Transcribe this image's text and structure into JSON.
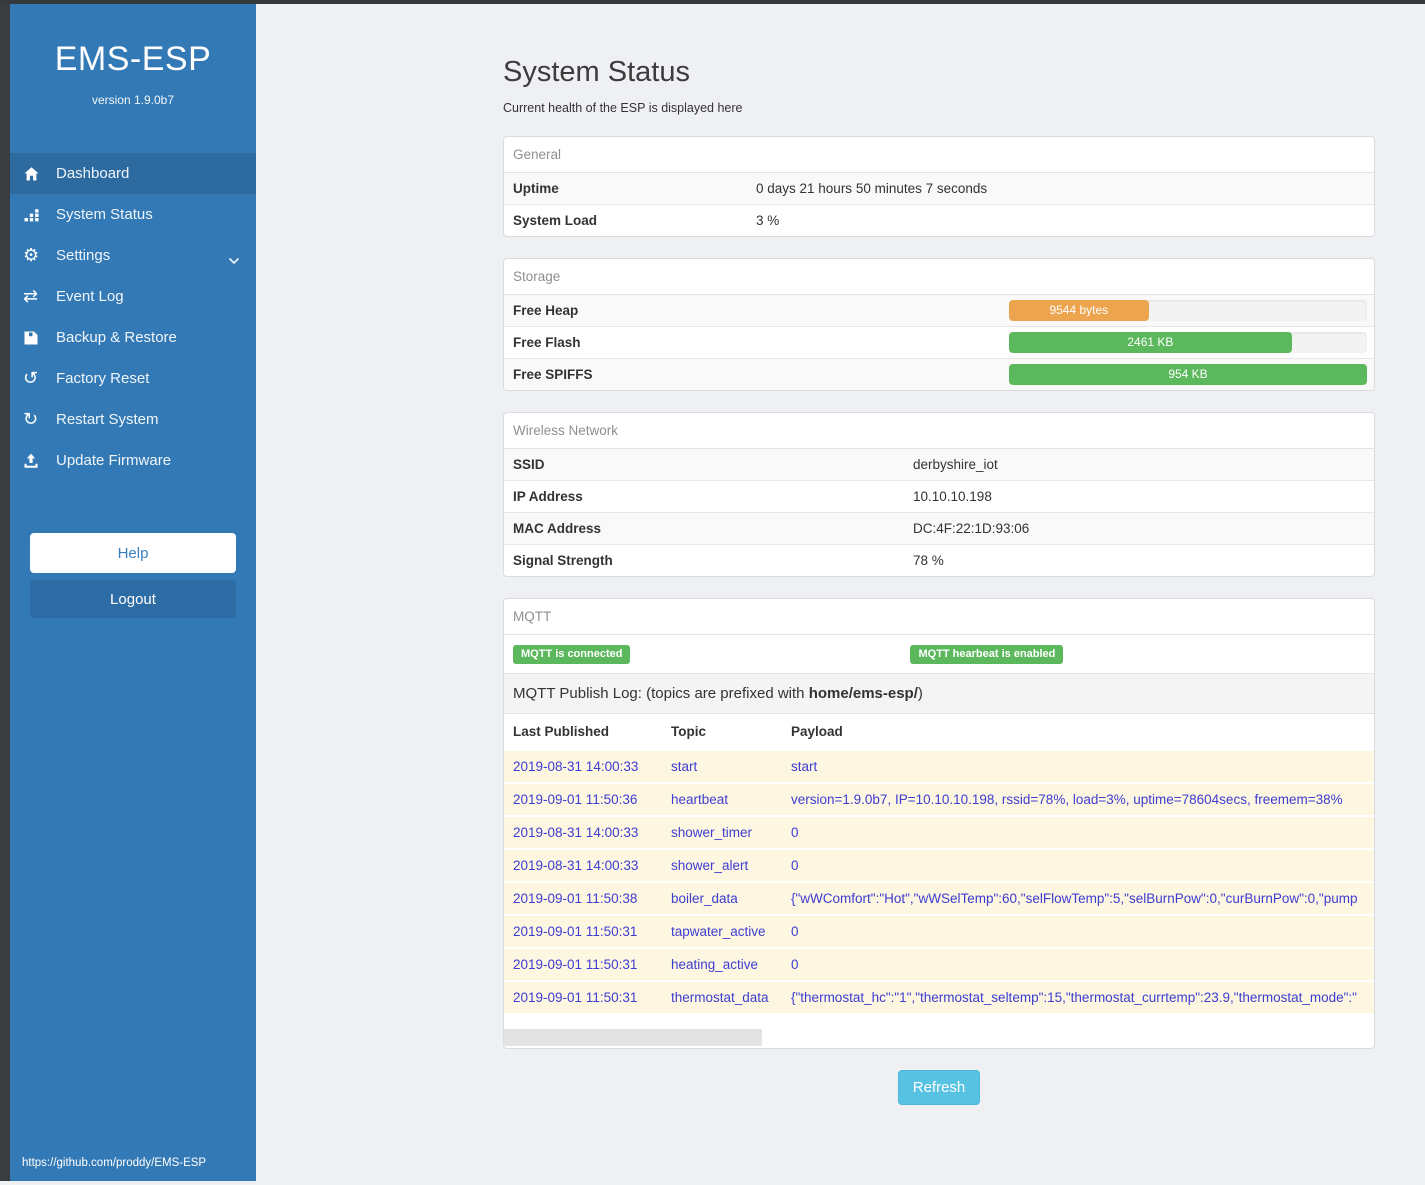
{
  "sidebar": {
    "brand": "EMS-ESP",
    "version": "version 1.9.0b7",
    "items": [
      {
        "label": "Dashboard",
        "icon": "home-icon",
        "active": true
      },
      {
        "label": "System Status",
        "icon": "chart-icon"
      },
      {
        "label": "Settings",
        "icon": "gear-icon",
        "glyph": "⚙",
        "chevron": true
      },
      {
        "label": "Event Log",
        "icon": "exchange-icon",
        "glyph": "⇄"
      },
      {
        "label": "Backup & Restore",
        "icon": "save-icon"
      },
      {
        "label": "Factory Reset",
        "icon": "undo-icon",
        "glyph": "↺"
      },
      {
        "label": "Restart System",
        "icon": "refresh-icon",
        "glyph": "↻"
      },
      {
        "label": "Update Firmware",
        "icon": "upload-icon"
      }
    ],
    "help_label": "Help",
    "logout_label": "Logout",
    "footer_link": "https://github.com/proddy/EMS-ESP"
  },
  "page": {
    "title": "System Status",
    "subtitle": "Current health of the ESP is displayed here",
    "refresh_label": "Refresh"
  },
  "general": {
    "header": "General",
    "rows": [
      {
        "label": "Uptime",
        "value": "0 days 21 hours 50 minutes 7 seconds"
      },
      {
        "label": "System Load",
        "value": "3 %"
      }
    ]
  },
  "storage": {
    "header": "Storage",
    "rows": [
      {
        "label": "Free Heap",
        "value": "9544 bytes",
        "percent": 39,
        "color": "#eda44e"
      },
      {
        "label": "Free Flash",
        "value": "2461 KB",
        "percent": 79,
        "color": "#5cb85c"
      },
      {
        "label": "Free SPIFFS",
        "value": "954 KB",
        "percent": 100,
        "color": "#5cb85c"
      }
    ]
  },
  "wireless": {
    "header": "Wireless Network",
    "rows": [
      {
        "label": "SSID",
        "value": "derbyshire_iot"
      },
      {
        "label": "IP Address",
        "value": "10.10.10.198"
      },
      {
        "label": "MAC Address",
        "value": "DC:4F:22:1D:93:06"
      },
      {
        "label": "Signal Strength",
        "value": "78 %"
      }
    ]
  },
  "mqtt": {
    "header": "MQTT",
    "badges": [
      "MQTT is connected",
      "MQTT hearbeat is enabled"
    ],
    "publish_log": {
      "prefix": "MQTT Publish Log: (topics are prefixed with ",
      "bold": "home/ems-esp/",
      "suffix": ")"
    },
    "table": {
      "headers": [
        "Last Published",
        "Topic",
        "Payload"
      ],
      "rows": [
        {
          "time": "2019-08-31 14:00:33",
          "topic": "start",
          "payload": "start"
        },
        {
          "time": "2019-09-01 11:50:36",
          "topic": "heartbeat",
          "payload": "version=1.9.0b7, IP=10.10.10.198, rssid=78%, load=3%, uptime=78604secs, freemem=38%"
        },
        {
          "time": "2019-08-31 14:00:33",
          "topic": "shower_timer",
          "payload": "0"
        },
        {
          "time": "2019-08-31 14:00:33",
          "topic": "shower_alert",
          "payload": "0"
        },
        {
          "time": "2019-09-01 11:50:38",
          "topic": "boiler_data",
          "payload": "{\"wWComfort\":\"Hot\",\"wWSelTemp\":60,\"selFlowTemp\":5,\"selBurnPow\":0,\"curBurnPow\":0,\"pump"
        },
        {
          "time": "2019-09-01 11:50:31",
          "topic": "tapwater_active",
          "payload": "0"
        },
        {
          "time": "2019-09-01 11:50:31",
          "topic": "heating_active",
          "payload": "0"
        },
        {
          "time": "2019-09-01 11:50:31",
          "topic": "thermostat_data",
          "payload": "{\"thermostat_hc\":\"1\",\"thermostat_seltemp\":15,\"thermostat_currtemp\":23.9,\"thermostat_mode\":\""
        }
      ]
    }
  },
  "colors": {
    "sidebar": "#3379b5",
    "sidebar_active": "#2c6aa0",
    "badge_green": "#5cb85c",
    "bar_orange": "#eda44e",
    "bar_green": "#5cb85c",
    "log_row_bg": "#fdf6e1",
    "log_text": "#3d3dd2",
    "refresh_blue": "#58c2e2"
  }
}
